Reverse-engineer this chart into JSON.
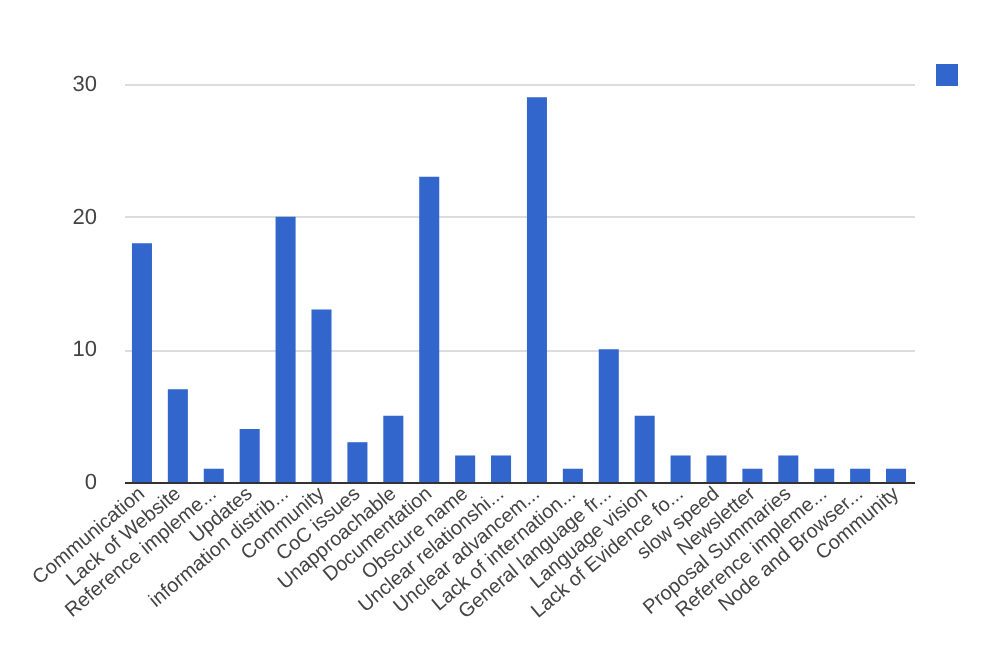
{
  "chart_data": {
    "type": "bar",
    "categories": [
      "Communication",
      "Lack of Website",
      "Reference impleme...",
      "Updates",
      "information distrib...",
      "Community",
      "CoC issues",
      "Unapproachable",
      "Documentation",
      "Obscure name",
      "Unclear relationshi...",
      "Unclear advancem...",
      "Lack of internation...",
      "General language fr...",
      "Language vision",
      "Lack of Evidence fo...",
      "slow speed",
      "Newsletter",
      "Proposal Summaries",
      "Reference impleme...",
      "Node and Browser...",
      "Community"
    ],
    "series": [
      {
        "color": "#3366cc",
        "values": [
          18,
          7,
          1,
          4,
          20,
          13,
          3,
          5,
          23,
          2,
          2,
          29,
          1,
          10,
          5,
          2,
          2,
          1,
          2,
          1,
          1,
          1
        ]
      }
    ],
    "ylim": [
      0,
      30
    ],
    "yticks": [
      0,
      10,
      20,
      30
    ],
    "grid": "y"
  }
}
